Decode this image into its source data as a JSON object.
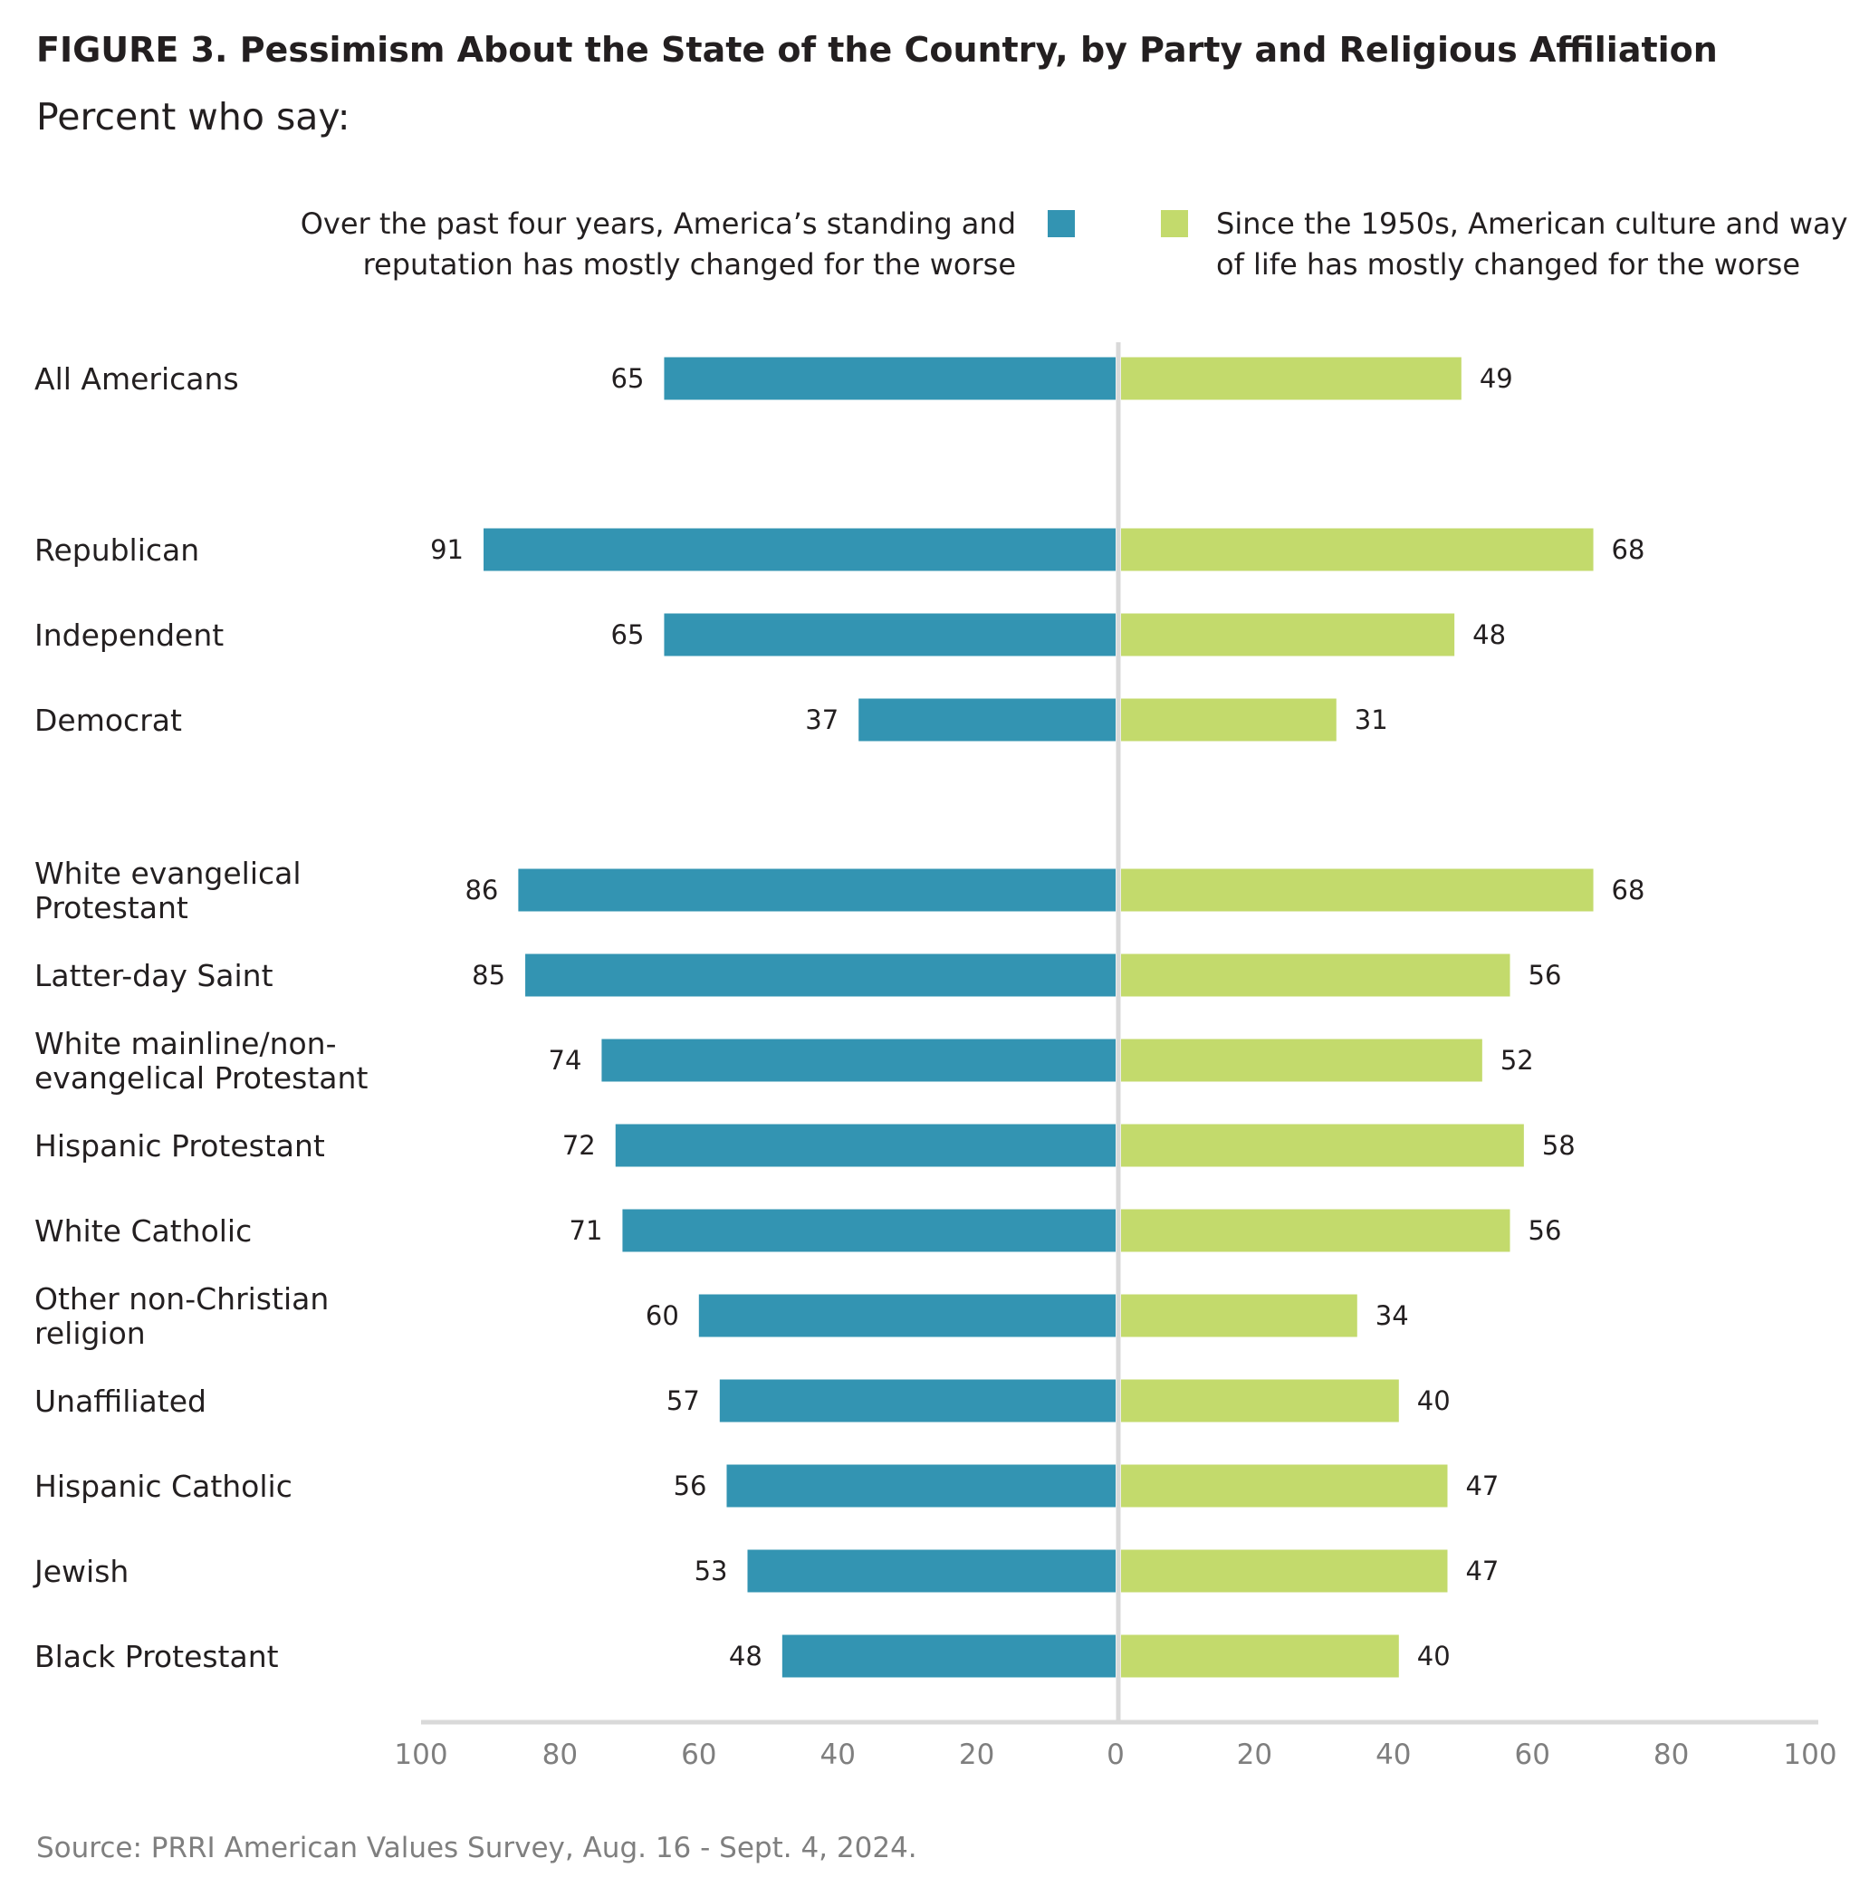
{
  "title": "FIGURE 3.  Pessimism About the State of the Country, by Party and Religious Affiliation",
  "subtitle": "Percent who say:",
  "source": "Source: PRRI American Values Survey, Aug. 16 - Sept. 4, 2024.",
  "colors": {
    "left_series": "#3394b2",
    "right_series": "#c3da6c",
    "center_line": "#d9d9d9",
    "axis_line": "#d9d9d9",
    "text": "#231f20",
    "muted_text": "#7f7f7f"
  },
  "chart_data": {
    "type": "bar",
    "orientation": "horizontal-diverging",
    "categories": [
      "All Americans",
      "Republican",
      "Independent",
      "Democrat",
      "White evangelical Protestant",
      "Latter-day Saint",
      "White mainline/non-evangelical Protestant",
      "Hispanic Protestant",
      "White Catholic",
      "Other non-Christian religion",
      "Unaffiliated",
      "Hispanic Catholic",
      "Jewish",
      "Black Protestant"
    ],
    "category_label_lines": [
      [
        "All Americans"
      ],
      [
        "Republican"
      ],
      [
        "Independent"
      ],
      [
        "Democrat"
      ],
      [
        "White evangelical",
        "Protestant"
      ],
      [
        "Latter-day Saint"
      ],
      [
        "White mainline/non-",
        "evangelical Protestant"
      ],
      [
        "Hispanic Protestant"
      ],
      [
        "White Catholic"
      ],
      [
        "Other non-Christian",
        "religion"
      ],
      [
        "Unaffiliated"
      ],
      [
        "Hispanic Catholic"
      ],
      [
        "Jewish"
      ],
      [
        "Black Protestant"
      ]
    ],
    "groups": [
      [
        "All Americans"
      ],
      [
        "Republican",
        "Independent",
        "Democrat"
      ],
      [
        "White evangelical Protestant",
        "Latter-day Saint",
        "White mainline/non-evangelical Protestant",
        "Hispanic Protestant",
        "White Catholic",
        "Other non-Christian religion",
        "Unaffiliated",
        "Hispanic Catholic",
        "Jewish",
        "Black Protestant"
      ]
    ],
    "series": [
      {
        "name": "Over the past four years, America’s standing and reputation has mostly changed for the worse",
        "name_lines": [
          "Over the past four years, America’s standing and",
          "reputation has mostly changed for the worse"
        ],
        "side": "left",
        "values": [
          65,
          91,
          65,
          37,
          86,
          85,
          74,
          72,
          71,
          60,
          57,
          56,
          53,
          48
        ]
      },
      {
        "name": "Since the 1950s, American culture and way of life has mostly changed for the worse",
        "name_lines": [
          "Since the 1950s, American culture and way",
          "of life has mostly changed for the worse"
        ],
        "side": "right",
        "values": [
          49,
          68,
          48,
          31,
          68,
          56,
          52,
          58,
          56,
          34,
          40,
          47,
          47,
          40
        ]
      }
    ],
    "xlim": [
      -100,
      100
    ],
    "x_tick_labels": [
      "100",
      "80",
      "60",
      "40",
      "20",
      "0",
      "20",
      "40",
      "60",
      "80",
      "100"
    ],
    "grid": false,
    "legend_position": "top"
  }
}
